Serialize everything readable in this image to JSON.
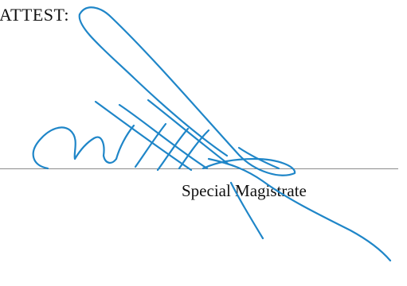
{
  "document": {
    "attest_label": "ATTEST:",
    "signer_title": "Special Magistrate"
  },
  "signature": {
    "type": "handwritten",
    "ink_color": "#1f86c8"
  },
  "colors": {
    "text": "#111111",
    "line": "#8a8a8a",
    "background": "#ffffff"
  }
}
